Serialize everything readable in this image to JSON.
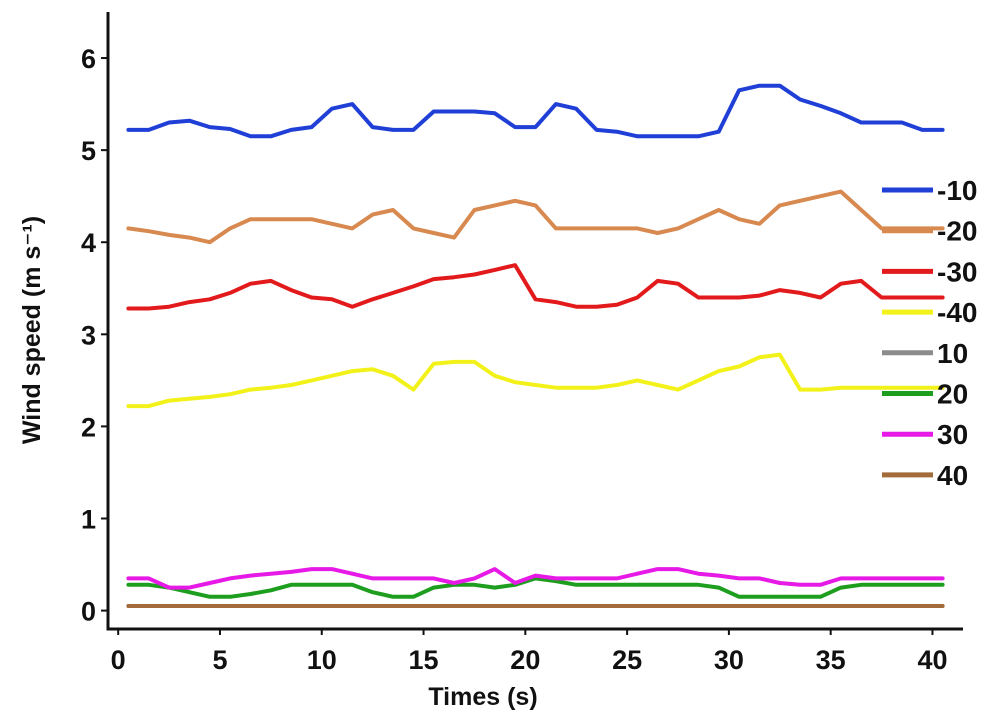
{
  "chart_data": {
    "type": "line",
    "title": "",
    "xlabel": "Times (s)",
    "ylabel": "Wind speed (m s⁻¹)",
    "xlim": [
      -0.5,
      41.5
    ],
    "ylim": [
      -0.2,
      6.5
    ],
    "xticks": [
      0,
      5,
      10,
      15,
      20,
      25,
      30,
      35,
      40
    ],
    "yticks": [
      0,
      1,
      2,
      3,
      4,
      5,
      6
    ],
    "grid": false,
    "legend_position": "right",
    "series": [
      {
        "name": "-10",
        "color": "#1f3fd6",
        "points": [
          [
            0.5,
            5.22
          ],
          [
            1.5,
            5.22
          ],
          [
            2.5,
            5.3
          ],
          [
            3.5,
            5.32
          ],
          [
            4.5,
            5.25
          ],
          [
            5.5,
            5.23
          ],
          [
            6.5,
            5.15
          ],
          [
            7.5,
            5.15
          ],
          [
            8.5,
            5.22
          ],
          [
            9.5,
            5.25
          ],
          [
            10.5,
            5.45
          ],
          [
            11.5,
            5.5
          ],
          [
            12.5,
            5.25
          ],
          [
            13.5,
            5.22
          ],
          [
            14.5,
            5.22
          ],
          [
            15.5,
            5.42
          ],
          [
            16.5,
            5.42
          ],
          [
            17.5,
            5.42
          ],
          [
            18.5,
            5.4
          ],
          [
            19.5,
            5.25
          ],
          [
            20.5,
            5.25
          ],
          [
            21.5,
            5.5
          ],
          [
            22.5,
            5.45
          ],
          [
            23.5,
            5.22
          ],
          [
            24.5,
            5.2
          ],
          [
            25.5,
            5.15
          ],
          [
            26.5,
            5.15
          ],
          [
            27.5,
            5.15
          ],
          [
            28.5,
            5.15
          ],
          [
            29.5,
            5.2
          ],
          [
            30.5,
            5.65
          ],
          [
            31.5,
            5.7
          ],
          [
            32.5,
            5.7
          ],
          [
            33.5,
            5.55
          ],
          [
            34.5,
            5.48
          ],
          [
            35.5,
            5.4
          ],
          [
            36.5,
            5.3
          ],
          [
            37.5,
            5.3
          ],
          [
            38.5,
            5.3
          ],
          [
            39.5,
            5.22
          ],
          [
            40.5,
            5.22
          ]
        ]
      },
      {
        "name": "-20",
        "color": "#d7894f",
        "points": [
          [
            0.5,
            4.15
          ],
          [
            1.5,
            4.12
          ],
          [
            2.5,
            4.08
          ],
          [
            3.5,
            4.05
          ],
          [
            4.5,
            4.0
          ],
          [
            5.5,
            4.15
          ],
          [
            6.5,
            4.25
          ],
          [
            7.5,
            4.25
          ],
          [
            8.5,
            4.25
          ],
          [
            9.5,
            4.25
          ],
          [
            10.5,
            4.2
          ],
          [
            11.5,
            4.15
          ],
          [
            12.5,
            4.3
          ],
          [
            13.5,
            4.35
          ],
          [
            14.5,
            4.15
          ],
          [
            15.5,
            4.1
          ],
          [
            16.5,
            4.05
          ],
          [
            17.5,
            4.35
          ],
          [
            18.5,
            4.4
          ],
          [
            19.5,
            4.45
          ],
          [
            20.5,
            4.4
          ],
          [
            21.5,
            4.15
          ],
          [
            22.5,
            4.15
          ],
          [
            23.5,
            4.15
          ],
          [
            24.5,
            4.15
          ],
          [
            25.5,
            4.15
          ],
          [
            26.5,
            4.1
          ],
          [
            27.5,
            4.15
          ],
          [
            28.5,
            4.25
          ],
          [
            29.5,
            4.35
          ],
          [
            30.5,
            4.25
          ],
          [
            31.5,
            4.2
          ],
          [
            32.5,
            4.4
          ],
          [
            33.5,
            4.45
          ],
          [
            34.5,
            4.5
          ],
          [
            35.5,
            4.55
          ],
          [
            36.5,
            4.35
          ],
          [
            37.5,
            4.15
          ],
          [
            38.5,
            4.15
          ],
          [
            39.5,
            4.15
          ],
          [
            40.5,
            4.15
          ]
        ]
      },
      {
        "name": "-30",
        "color": "#e31a1c",
        "points": [
          [
            0.5,
            3.28
          ],
          [
            1.5,
            3.28
          ],
          [
            2.5,
            3.3
          ],
          [
            3.5,
            3.35
          ],
          [
            4.5,
            3.38
          ],
          [
            5.5,
            3.45
          ],
          [
            6.5,
            3.55
          ],
          [
            7.5,
            3.58
          ],
          [
            8.5,
            3.48
          ],
          [
            9.5,
            3.4
          ],
          [
            10.5,
            3.38
          ],
          [
            11.5,
            3.3
          ],
          [
            12.5,
            3.38
          ],
          [
            13.5,
            3.45
          ],
          [
            14.5,
            3.52
          ],
          [
            15.5,
            3.6
          ],
          [
            16.5,
            3.62
          ],
          [
            17.5,
            3.65
          ],
          [
            18.5,
            3.7
          ],
          [
            19.5,
            3.75
          ],
          [
            20.5,
            3.38
          ],
          [
            21.5,
            3.35
          ],
          [
            22.5,
            3.3
          ],
          [
            23.5,
            3.3
          ],
          [
            24.5,
            3.32
          ],
          [
            25.5,
            3.4
          ],
          [
            26.5,
            3.58
          ],
          [
            27.5,
            3.55
          ],
          [
            28.5,
            3.4
          ],
          [
            29.5,
            3.4
          ],
          [
            30.5,
            3.4
          ],
          [
            31.5,
            3.42
          ],
          [
            32.5,
            3.48
          ],
          [
            33.5,
            3.45
          ],
          [
            34.5,
            3.4
          ],
          [
            35.5,
            3.55
          ],
          [
            36.5,
            3.58
          ],
          [
            37.5,
            3.4
          ],
          [
            38.5,
            3.4
          ],
          [
            39.5,
            3.4
          ],
          [
            40.5,
            3.4
          ]
        ]
      },
      {
        "name": "-40",
        "color": "#f2f21a",
        "points": [
          [
            0.5,
            2.22
          ],
          [
            1.5,
            2.22
          ],
          [
            2.5,
            2.28
          ],
          [
            3.5,
            2.3
          ],
          [
            4.5,
            2.32
          ],
          [
            5.5,
            2.35
          ],
          [
            6.5,
            2.4
          ],
          [
            7.5,
            2.42
          ],
          [
            8.5,
            2.45
          ],
          [
            9.5,
            2.5
          ],
          [
            10.5,
            2.55
          ],
          [
            11.5,
            2.6
          ],
          [
            12.5,
            2.62
          ],
          [
            13.5,
            2.55
          ],
          [
            14.5,
            2.4
          ],
          [
            15.5,
            2.68
          ],
          [
            16.5,
            2.7
          ],
          [
            17.5,
            2.7
          ],
          [
            18.5,
            2.55
          ],
          [
            19.5,
            2.48
          ],
          [
            20.5,
            2.45
          ],
          [
            21.5,
            2.42
          ],
          [
            22.5,
            2.42
          ],
          [
            23.5,
            2.42
          ],
          [
            24.5,
            2.45
          ],
          [
            25.5,
            2.5
          ],
          [
            26.5,
            2.45
          ],
          [
            27.5,
            2.4
          ],
          [
            28.5,
            2.5
          ],
          [
            29.5,
            2.6
          ],
          [
            30.5,
            2.65
          ],
          [
            31.5,
            2.75
          ],
          [
            32.5,
            2.78
          ],
          [
            33.5,
            2.4
          ],
          [
            34.5,
            2.4
          ],
          [
            35.5,
            2.42
          ],
          [
            36.5,
            2.42
          ],
          [
            37.5,
            2.42
          ],
          [
            38.5,
            2.42
          ],
          [
            39.5,
            2.42
          ],
          [
            40.5,
            2.42
          ]
        ]
      },
      {
        "name": "10",
        "color": "#8c8c8c",
        "points": [
          [
            0.5,
            0.05
          ],
          [
            40.5,
            0.05
          ]
        ]
      },
      {
        "name": "20",
        "color": "#1e9e1e",
        "points": [
          [
            0.5,
            0.28
          ],
          [
            1.5,
            0.28
          ],
          [
            2.5,
            0.25
          ],
          [
            3.5,
            0.2
          ],
          [
            4.5,
            0.15
          ],
          [
            5.5,
            0.15
          ],
          [
            6.5,
            0.18
          ],
          [
            7.5,
            0.22
          ],
          [
            8.5,
            0.28
          ],
          [
            9.5,
            0.28
          ],
          [
            10.5,
            0.28
          ],
          [
            11.5,
            0.28
          ],
          [
            12.5,
            0.2
          ],
          [
            13.5,
            0.15
          ],
          [
            14.5,
            0.15
          ],
          [
            15.5,
            0.25
          ],
          [
            16.5,
            0.28
          ],
          [
            17.5,
            0.28
          ],
          [
            18.5,
            0.25
          ],
          [
            19.5,
            0.28
          ],
          [
            20.5,
            0.35
          ],
          [
            21.5,
            0.32
          ],
          [
            22.5,
            0.28
          ],
          [
            23.5,
            0.28
          ],
          [
            24.5,
            0.28
          ],
          [
            25.5,
            0.28
          ],
          [
            26.5,
            0.28
          ],
          [
            27.5,
            0.28
          ],
          [
            28.5,
            0.28
          ],
          [
            29.5,
            0.25
          ],
          [
            30.5,
            0.15
          ],
          [
            31.5,
            0.15
          ],
          [
            32.5,
            0.15
          ],
          [
            33.5,
            0.15
          ],
          [
            34.5,
            0.15
          ],
          [
            35.5,
            0.25
          ],
          [
            36.5,
            0.28
          ],
          [
            37.5,
            0.28
          ],
          [
            38.5,
            0.28
          ],
          [
            39.5,
            0.28
          ],
          [
            40.5,
            0.28
          ]
        ]
      },
      {
        "name": "30",
        "color": "#e619e6",
        "points": [
          [
            0.5,
            0.35
          ],
          [
            1.5,
            0.35
          ],
          [
            2.5,
            0.25
          ],
          [
            3.5,
            0.25
          ],
          [
            4.5,
            0.3
          ],
          [
            5.5,
            0.35
          ],
          [
            6.5,
            0.38
          ],
          [
            7.5,
            0.4
          ],
          [
            8.5,
            0.42
          ],
          [
            9.5,
            0.45
          ],
          [
            10.5,
            0.45
          ],
          [
            11.5,
            0.4
          ],
          [
            12.5,
            0.35
          ],
          [
            13.5,
            0.35
          ],
          [
            14.5,
            0.35
          ],
          [
            15.5,
            0.35
          ],
          [
            16.5,
            0.3
          ],
          [
            17.5,
            0.35
          ],
          [
            18.5,
            0.45
          ],
          [
            19.5,
            0.3
          ],
          [
            20.5,
            0.38
          ],
          [
            21.5,
            0.35
          ],
          [
            22.5,
            0.35
          ],
          [
            23.5,
            0.35
          ],
          [
            24.5,
            0.35
          ],
          [
            25.5,
            0.4
          ],
          [
            26.5,
            0.45
          ],
          [
            27.5,
            0.45
          ],
          [
            28.5,
            0.4
          ],
          [
            29.5,
            0.38
          ],
          [
            30.5,
            0.35
          ],
          [
            31.5,
            0.35
          ],
          [
            32.5,
            0.3
          ],
          [
            33.5,
            0.28
          ],
          [
            34.5,
            0.28
          ],
          [
            35.5,
            0.35
          ],
          [
            36.5,
            0.35
          ],
          [
            37.5,
            0.35
          ],
          [
            38.5,
            0.35
          ],
          [
            39.5,
            0.35
          ],
          [
            40.5,
            0.35
          ]
        ]
      },
      {
        "name": "40",
        "color": "#a36a3a",
        "points": [
          [
            0.5,
            0.05
          ],
          [
            40.5,
            0.05
          ]
        ]
      }
    ]
  }
}
